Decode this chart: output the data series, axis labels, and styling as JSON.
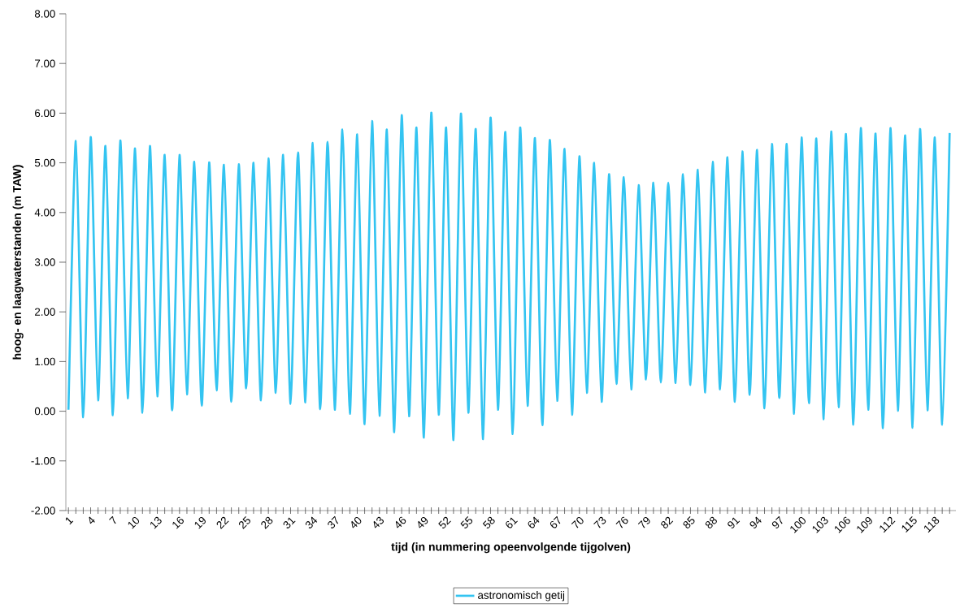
{
  "chart_data": {
    "type": "line",
    "xlabel": "tijd   (in nummering opeenvolgende tijgolven)",
    "ylabel": "hoog- en laagwaterstanden  (m TAW)",
    "categories": [
      "1",
      null,
      null,
      "4",
      null,
      null,
      "7",
      null,
      null,
      "10",
      null,
      null,
      "13",
      null,
      null,
      "16",
      null,
      null,
      "19",
      null,
      null,
      "22",
      null,
      null,
      "25",
      null,
      null,
      "28",
      null,
      null,
      "31",
      null,
      null,
      "34",
      null,
      null,
      "37",
      null,
      null,
      "40",
      null,
      null,
      "43",
      null,
      null,
      "46",
      null,
      null,
      "49",
      null,
      null,
      "52",
      null,
      null,
      "55",
      null,
      null,
      "58",
      null,
      null,
      "61",
      null,
      null,
      "64",
      null,
      null,
      "67",
      null,
      null,
      "70",
      null,
      null,
      "73",
      null,
      null,
      "76",
      null,
      null,
      "79",
      null,
      null,
      "82",
      null,
      null,
      "85",
      null,
      null,
      "88",
      null,
      null,
      "91",
      null,
      null,
      "94",
      null,
      null,
      "97",
      null,
      null,
      "100",
      null,
      null,
      "103",
      null,
      null,
      "106",
      null,
      null,
      "109",
      null,
      null,
      "112",
      null,
      null,
      "115",
      null,
      null,
      "118",
      null,
      null
    ],
    "series": [
      {
        "name": "astronomisch getij",
        "color": "#33c4f1",
        "values": [
          0.03,
          5.44,
          -0.12,
          5.52,
          0.22,
          5.34,
          -0.08,
          5.45,
          0.26,
          5.29,
          -0.03,
          5.34,
          0.3,
          5.16,
          0.02,
          5.16,
          0.34,
          5.02,
          0.11,
          5.01,
          0.42,
          4.96,
          0.19,
          4.97,
          0.46,
          5.0,
          0.22,
          5.09,
          0.37,
          5.16,
          0.15,
          5.21,
          0.18,
          5.4,
          0.04,
          5.42,
          0.03,
          5.67,
          -0.05,
          5.57,
          -0.26,
          5.84,
          -0.09,
          5.67,
          -0.42,
          5.96,
          -0.1,
          5.71,
          -0.53,
          6.01,
          -0.07,
          5.71,
          -0.58,
          5.99,
          -0.03,
          5.68,
          -0.56,
          5.91,
          0.03,
          5.62,
          -0.46,
          5.71,
          0.11,
          5.5,
          -0.28,
          5.46,
          0.21,
          5.28,
          -0.07,
          5.13,
          0.37,
          5.0,
          0.19,
          4.77,
          0.55,
          4.71,
          0.44,
          4.55,
          0.64,
          4.6,
          0.58,
          4.6,
          0.57,
          4.77,
          0.53,
          4.86,
          0.38,
          5.02,
          0.44,
          5.11,
          0.19,
          5.23,
          0.33,
          5.26,
          0.06,
          5.38,
          0.27,
          5.38,
          -0.05,
          5.51,
          0.16,
          5.49,
          -0.16,
          5.63,
          0.08,
          5.58,
          -0.27,
          5.7,
          0.03,
          5.59,
          -0.34,
          5.7,
          0.01,
          5.55,
          -0.33,
          5.68,
          0.02,
          5.51,
          -0.27,
          5.6
        ]
      }
    ],
    "ylim": [
      -2,
      8
    ],
    "yticks": [
      {
        "value": -2,
        "label": "-2.00"
      },
      {
        "value": -1,
        "label": "-1.00"
      },
      {
        "value": 0,
        "label": "0.00"
      },
      {
        "value": 1,
        "label": "1.00"
      },
      {
        "value": 2,
        "label": "2.00"
      },
      {
        "value": 3,
        "label": "3.00"
      },
      {
        "value": 4,
        "label": "4.00"
      },
      {
        "value": 5,
        "label": "5.00"
      },
      {
        "value": 6,
        "label": "6.00"
      },
      {
        "value": 7,
        "label": "7.00"
      },
      {
        "value": 8,
        "label": "8.00"
      }
    ],
    "legend": "bottom"
  }
}
